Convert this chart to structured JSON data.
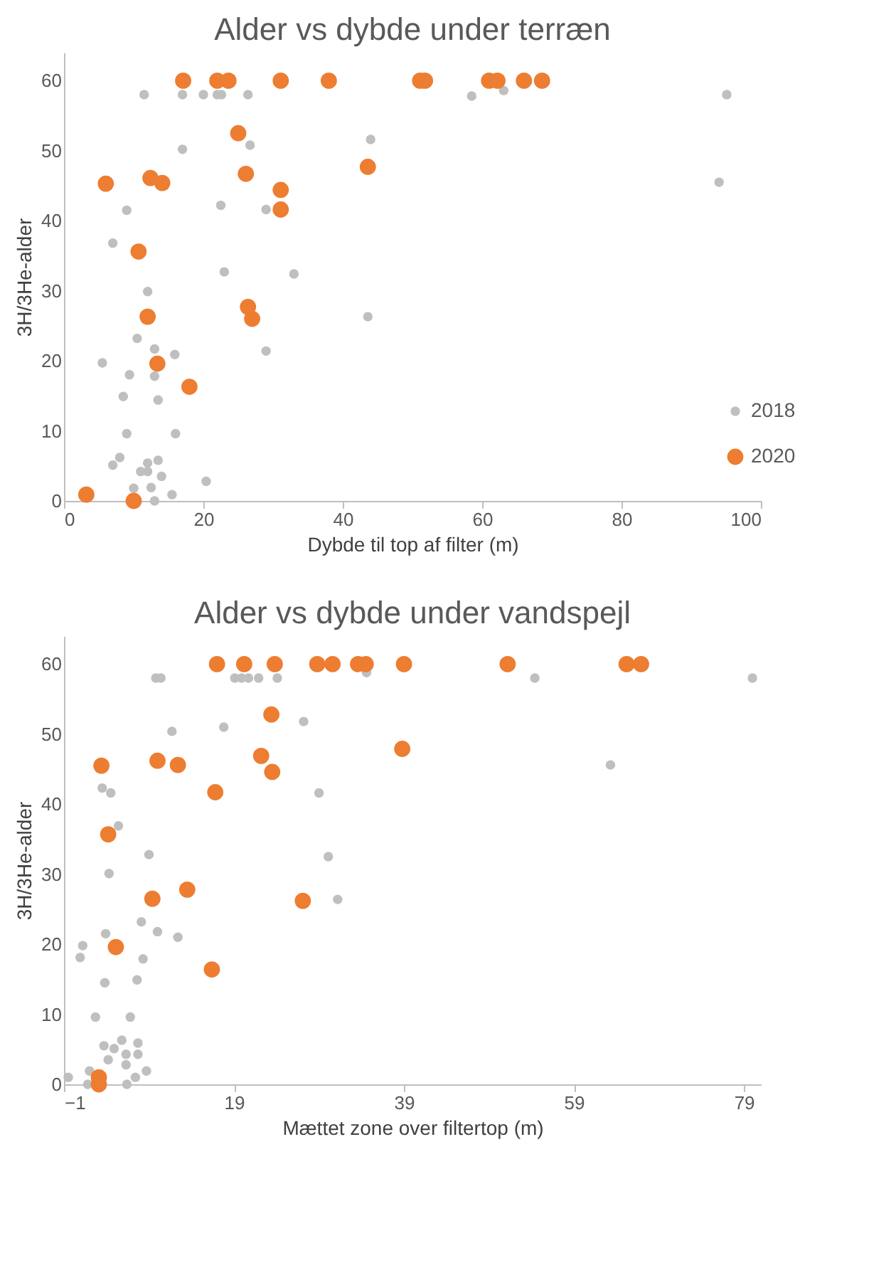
{
  "chart_data": [
    {
      "type": "scatter",
      "title": "Alder vs dybde under terræn",
      "xlabel": "Dybde til top af filter (m)",
      "ylabel": "3H/3He-alder",
      "xlim": [
        0,
        100
      ],
      "xticks": [
        0,
        20,
        40,
        60,
        80,
        100
      ],
      "ylim": [
        0,
        64
      ],
      "yticks": [
        0,
        10,
        20,
        30,
        40,
        50,
        60
      ],
      "grid": false,
      "legend": "bottom right",
      "marker": "circle",
      "series": [
        {
          "name": "2018",
          "color": "#bfbfbf",
          "x": [
            11.5,
            17.0,
            20.0,
            22.0,
            22.6,
            26.4,
            17.0,
            26.7,
            44.0,
            9.0,
            22.5,
            29.0,
            7.0,
            23.0,
            33.0,
            12.0,
            43.6,
            10.5,
            13.0,
            15.9,
            29.0,
            5.5,
            9.4,
            13.0,
            8.5,
            13.5,
            9.0,
            16.0,
            8.0,
            7.0,
            12.0,
            13.5,
            11.0,
            12.0,
            14.0,
            20.4,
            10.0,
            12.5,
            15.5,
            13.0,
            58.5,
            63.1,
            95.1,
            94.0
          ],
          "values": [
            58,
            58,
            58,
            58,
            58,
            58,
            50.2,
            50.8,
            51.6,
            41.5,
            42.2,
            41.6,
            36.8,
            32.7,
            32.4,
            29.9,
            26.3,
            23.2,
            21.7,
            20.9,
            21.4,
            19.7,
            18.0,
            17.8,
            14.9,
            14.4,
            9.6,
            9.6,
            6.2,
            5.1,
            5.4,
            5.8,
            4.2,
            4.2,
            3.5,
            2.8,
            1.8,
            1.9,
            0.9,
            0,
            57.8,
            58.6,
            58,
            45.5
          ]
        },
        {
          "name": "2020",
          "color": "#ed7d31",
          "x": [
            17.1,
            22.0,
            23.6,
            31.1,
            38.0,
            51.1,
            51.8,
            61.0,
            62.2,
            66.0,
            68.6,
            25.0,
            26.1,
            43.6,
            6.0,
            12.4,
            14.1,
            31.1,
            31.1,
            10.7,
            12.0,
            26.4,
            27.0,
            13.4,
            18.0,
            3.2,
            10.0
          ],
          "values": [
            60,
            60,
            60,
            60,
            60,
            60,
            60,
            60,
            60,
            60,
            60,
            52.5,
            46.7,
            47.7,
            45.3,
            46.1,
            45.4,
            44.4,
            41.6,
            35.6,
            26.3,
            27.7,
            26.0,
            19.6,
            16.3,
            0.9,
            0
          ]
        }
      ]
    },
    {
      "type": "scatter",
      "title": "Alder vs dybde under vandspejl",
      "xlabel": "Mættet zone over filtertop (m)",
      "ylabel": "3H/3He-alder",
      "xlim": [
        -1,
        81
      ],
      "xticks": [
        -1,
        19,
        39,
        59,
        79
      ],
      "ylim": [
        0,
        64
      ],
      "yticks": [
        0,
        10,
        20,
        30,
        40,
        50,
        60
      ],
      "grid": false,
      "legend": "bottom right",
      "marker": "circle",
      "series": [
        {
          "name": "2018",
          "color": "#bfbfbf",
          "x": [
            9.8,
            10.4,
            19.1,
            19.9,
            20.7,
            21.9,
            24.1,
            34.6,
            54.4,
            80.0,
            11.7,
            17.8,
            27.2,
            3.5,
            4.5,
            29.0,
            5.4,
            9.0,
            30.1,
            4.3,
            31.2,
            8.1,
            3.9,
            10.0,
            12.4,
            1.2,
            0.9,
            8.3,
            3.8,
            7.6,
            2.7,
            6.8,
            5.8,
            3.7,
            4.9,
            7.7,
            6.3,
            7.7,
            4.2,
            6.3,
            2.0,
            8.7,
            7.4,
            -0.5,
            1.8,
            6.4,
            63.3
          ],
          "values": [
            58,
            58,
            58,
            58,
            58,
            58,
            58,
            58.8,
            58,
            58,
            50.4,
            51.0,
            51.8,
            42.3,
            41.6,
            41.6,
            36.9,
            32.8,
            32.5,
            30.1,
            26.4,
            23.2,
            21.5,
            21.8,
            21.0,
            19.8,
            18.1,
            17.9,
            14.5,
            14.9,
            9.6,
            9.6,
            6.3,
            5.5,
            5.1,
            5.9,
            4.3,
            4.3,
            3.5,
            2.8,
            1.9,
            1.9,
            1.0,
            1.0,
            0,
            0,
            45.6
          ]
        },
        {
          "name": "2020",
          "color": "#ed7d31",
          "x": [
            17.0,
            20.2,
            23.8,
            28.8,
            30.6,
            33.6,
            34.5,
            39.0,
            51.2,
            65.2,
            66.9,
            38.8,
            23.4,
            22.2,
            23.5,
            3.4,
            10.0,
            12.4,
            16.8,
            4.2,
            9.4,
            13.5,
            27.1,
            5.1,
            16.4,
            3.1,
            3.1
          ],
          "values": [
            60,
            60,
            60,
            60,
            60,
            60,
            60,
            60,
            60,
            60,
            60,
            47.9,
            52.8,
            46.9,
            44.6,
            45.5,
            46.2,
            45.6,
            41.7,
            35.7,
            26.5,
            27.8,
            26.2,
            19.6,
            16.4,
            1.0,
            0
          ]
        }
      ]
    }
  ]
}
